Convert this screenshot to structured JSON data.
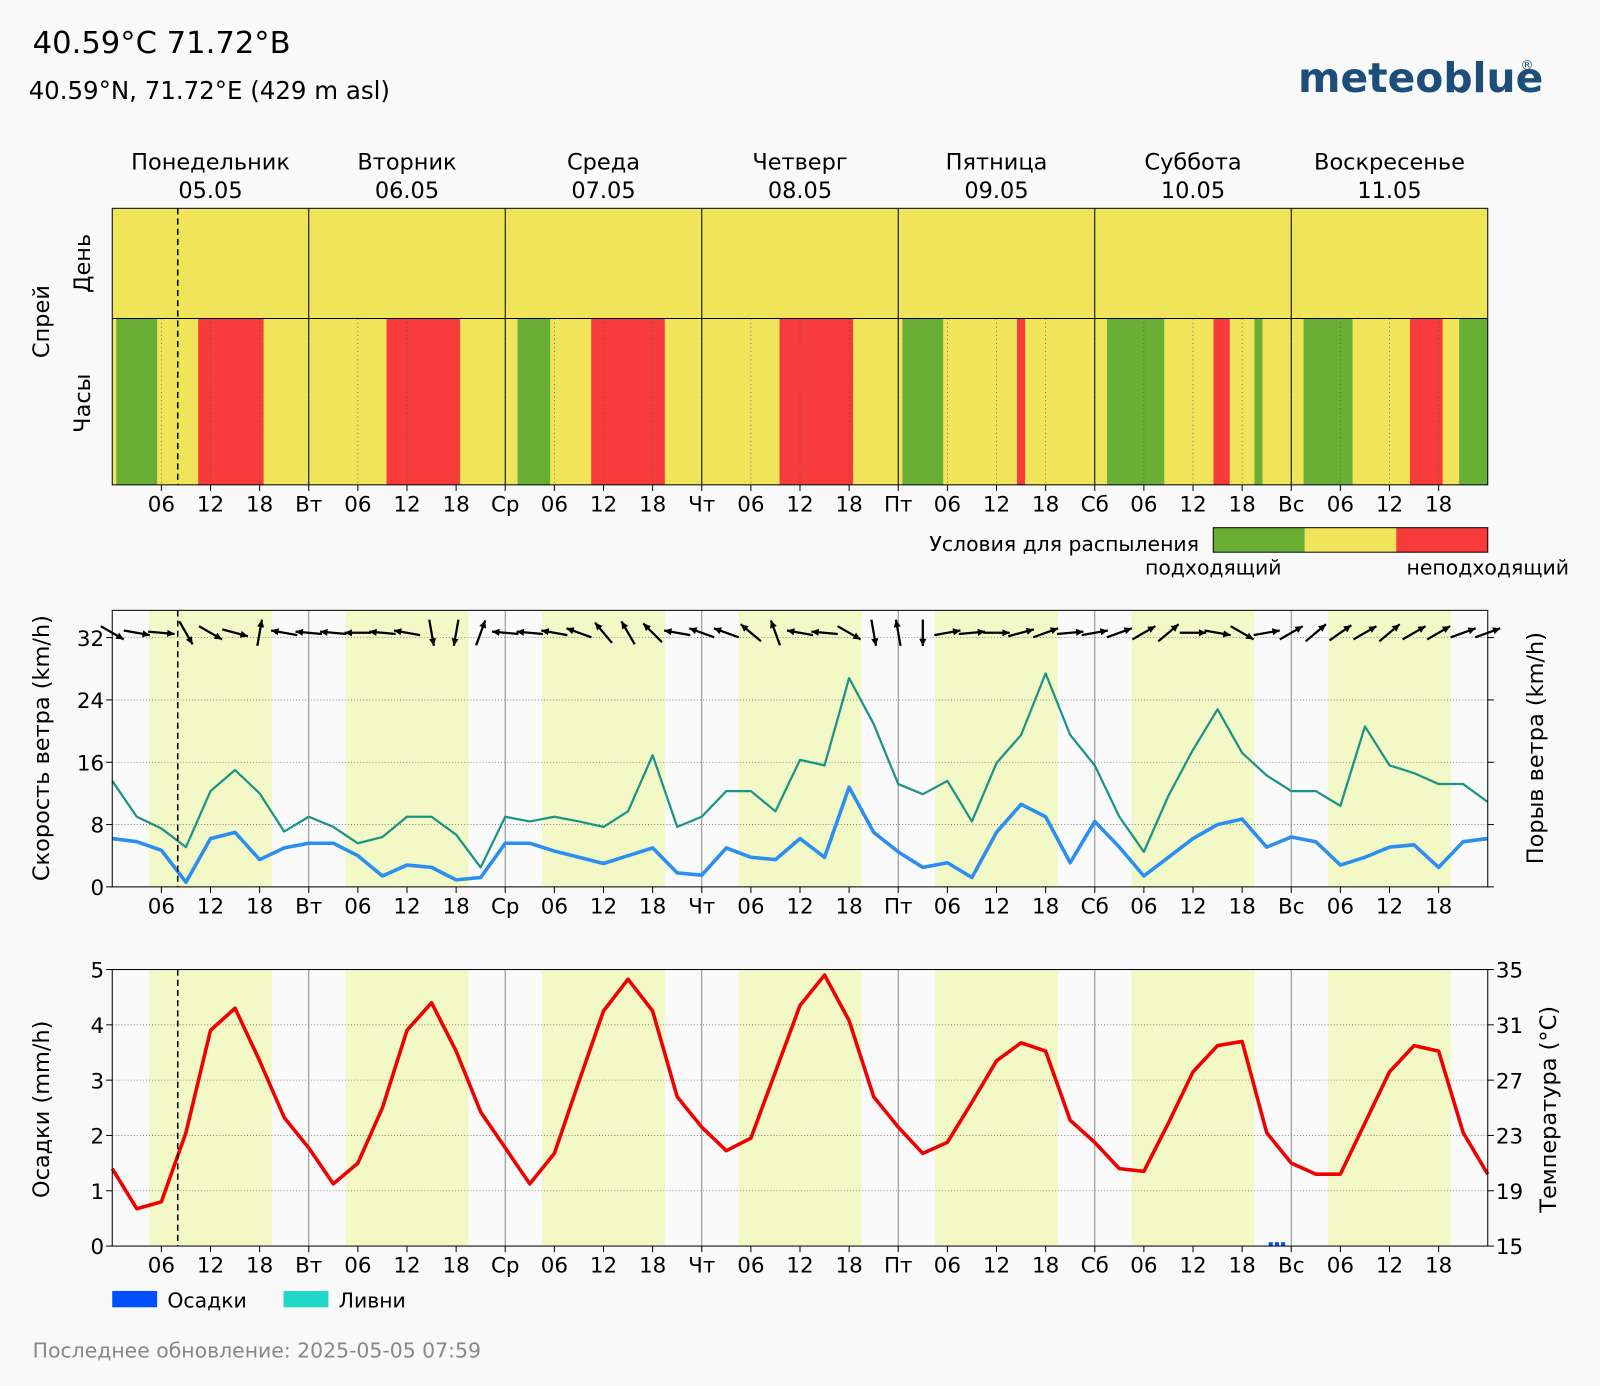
{
  "header": {
    "title": "40.59°C 71.72°B",
    "subtitle": "40.59°N, 71.72°E (429 m asl)",
    "logo": "meteoblue",
    "logo_mark": "®",
    "footer": "Последнее обновление: 2025-05-05 07:59"
  },
  "time_axis": {
    "xlim": [
      0,
      168
    ],
    "xticks": [
      {
        "value": 6,
        "label": "06"
      },
      12,
      18,
      {
        "value": 24,
        "label": "Вт"
      },
      {
        "value": 30,
        "label": "06"
      },
      {
        "value": 36,
        "label": "12"
      },
      {
        "value": 42,
        "label": "18"
      },
      {
        "value": 48,
        "label": "Ср"
      },
      {
        "value": 54,
        "label": "06"
      },
      {
        "value": 60,
        "label": "12"
      },
      {
        "value": 66,
        "label": "18"
      },
      {
        "value": 72,
        "label": "Чт"
      },
      {
        "value": 78,
        "label": "06"
      },
      {
        "value": 84,
        "label": "12"
      },
      {
        "value": 90,
        "label": "18"
      },
      {
        "value": 96,
        "label": "Пт"
      },
      {
        "value": 102,
        "label": "06"
      },
      {
        "value": 108,
        "label": "12"
      },
      {
        "value": 114,
        "label": "18"
      },
      {
        "value": 120,
        "label": "Сб"
      },
      {
        "value": 126,
        "label": "06"
      },
      {
        "value": 132,
        "label": "12"
      },
      {
        "value": 138,
        "label": "18"
      },
      {
        "value": 144,
        "label": "Вс"
      },
      {
        "value": 150,
        "label": "06"
      },
      {
        "value": 156,
        "label": "12"
      },
      {
        "value": 162,
        "label": "18"
      }
    ],
    "days": [
      {
        "name": "Понедельник",
        "date": "05.05",
        "color": "#000000"
      },
      {
        "name": "Вторник",
        "date": "06.05",
        "color": "#000000"
      },
      {
        "name": "Среда",
        "date": "07.05",
        "color": "#000000"
      },
      {
        "name": "Четверг",
        "date": "08.05",
        "color": "#000000"
      },
      {
        "name": "Пятница",
        "date": "09.05",
        "color": "#000000"
      },
      {
        "name": "Суббота",
        "date": "10.05",
        "color": "#d40000"
      },
      {
        "name": "Воскресенье",
        "date": "11.05",
        "color": "#d40000"
      }
    ],
    "now": 8,
    "daylight": [
      4.5,
      19.5
    ]
  },
  "chart_data": [
    {
      "type": "spray",
      "ylabel": "Спрей",
      "row_labels": [
        "День",
        "Часы"
      ],
      "day_row": [
        1,
        1,
        1,
        1,
        1,
        1,
        1
      ],
      "segments": [
        {
          "start": 0.5,
          "end": 5.5,
          "level": 0
        },
        {
          "start": 5.5,
          "end": 10.5,
          "level": 1
        },
        {
          "start": 10.5,
          "end": 18.5,
          "level": 2
        },
        {
          "start": 18.5,
          "end": 33.5,
          "level": 1
        },
        {
          "start": 33.5,
          "end": 42.5,
          "level": 2
        },
        {
          "start": 42.5,
          "end": 49.5,
          "level": 1
        },
        {
          "start": 49.5,
          "end": 53.5,
          "level": 0
        },
        {
          "start": 53.5,
          "end": 58.5,
          "level": 1
        },
        {
          "start": 58.5,
          "end": 67.5,
          "level": 2
        },
        {
          "start": 67.5,
          "end": 81.5,
          "level": 1
        },
        {
          "start": 81.5,
          "end": 90.5,
          "level": 2
        },
        {
          "start": 90.5,
          "end": 96.5,
          "level": 1
        },
        {
          "start": 96.5,
          "end": 101.5,
          "level": 0
        },
        {
          "start": 101.5,
          "end": 110.5,
          "level": 1
        },
        {
          "start": 110.5,
          "end": 111.5,
          "level": 2
        },
        {
          "start": 111.5,
          "end": 121.5,
          "level": 1
        },
        {
          "start": 121.5,
          "end": 128.5,
          "level": 0
        },
        {
          "start": 128.5,
          "end": 134.5,
          "level": 1
        },
        {
          "start": 134.5,
          "end": 136.5,
          "level": 2
        },
        {
          "start": 136.5,
          "end": 139.5,
          "level": 1
        },
        {
          "start": 139.5,
          "end": 140.5,
          "level": 0
        },
        {
          "start": 140.5,
          "end": 145.5,
          "level": 1
        },
        {
          "start": 145.5,
          "end": 151.5,
          "level": 0
        },
        {
          "start": 151.5,
          "end": 158.5,
          "level": 1
        },
        {
          "start": 158.5,
          "end": 162.5,
          "level": 2
        },
        {
          "start": 162.5,
          "end": 164.5,
          "level": 1
        },
        {
          "start": 164.5,
          "end": 168,
          "level": 0
        }
      ],
      "legend": {
        "title": "Условия для распыления",
        "colors": [
          "#6aaf35",
          "#f0e55a",
          "#f73b3a"
        ],
        "labels": [
          "подходящий",
          "неподходящий"
        ]
      }
    },
    {
      "type": "wind",
      "ylabel": "Скорость ветра (km/h)",
      "y2label": "Порыв ветра (km/h)",
      "ylim": [
        0,
        35.5
      ],
      "yticks": [
        0,
        8,
        16,
        24,
        32
      ],
      "grid": true,
      "x": [
        0,
        3,
        6,
        9,
        12,
        15,
        18,
        21,
        24,
        27,
        30,
        33,
        36,
        39,
        42,
        45,
        48,
        51,
        54,
        57,
        60,
        63,
        66,
        69,
        72,
        75,
        78,
        81,
        84,
        87,
        90,
        93,
        96,
        99,
        102,
        105,
        108,
        111,
        114,
        117,
        120,
        123,
        126,
        129,
        132,
        135,
        138,
        141,
        144,
        147,
        150,
        153,
        156,
        159,
        162,
        165,
        168
      ],
      "series": [
        {
          "color": "#2b8ef0",
          "values": [
            6.2,
            5.8,
            4.7,
            0.6,
            6.2,
            7,
            3.5,
            5,
            5.6,
            5.6,
            4,
            1.4,
            2.8,
            2.5,
            0.9,
            1.2,
            5.6,
            5.6,
            4.6,
            3.8,
            3,
            4,
            5,
            1.8,
            1.5,
            5,
            3.8,
            3.5,
            6.2,
            3.8,
            12.8,
            7,
            4.5,
            2.5,
            3.1,
            1.2,
            7,
            10.6,
            9,
            3.1,
            8.4,
            5.1,
            1.4,
            3.8,
            6.2,
            8,
            8.7,
            5.1,
            6.4,
            5.8,
            2.8,
            3.8,
            5.1,
            5.4,
            2.5,
            5.8,
            6.2
          ]
        },
        {
          "color": "#1c9387",
          "values": [
            13.6,
            9,
            7.5,
            5.1,
            12.3,
            15,
            12,
            7.1,
            9,
            7.7,
            5.6,
            6.4,
            9,
            9,
            6.7,
            2.5,
            9,
            8.4,
            9,
            8.4,
            7.7,
            9.7,
            16.9,
            7.7,
            9,
            12.3,
            12.3,
            9.7,
            16.3,
            15.6,
            26.8,
            20.9,
            13.2,
            11.9,
            13.6,
            8.4,
            15.9,
            19.5,
            27.4,
            19.5,
            15.6,
            9,
            4.5,
            11.7,
            17.6,
            22.8,
            17.2,
            14.3,
            12.3,
            12.3,
            10.4,
            20.6,
            15.6,
            14.6,
            13.2,
            13.2,
            10.9
          ]
        }
      ],
      "wind_direction": [
        300,
        280,
        275,
        330,
        300,
        285,
        190,
        100,
        95,
        95,
        90,
        95,
        100,
        350,
        10,
        200,
        95,
        95,
        100,
        110,
        140,
        150,
        135,
        100,
        110,
        110,
        130,
        160,
        100,
        95,
        300,
        350,
        170,
        0,
        260,
        265,
        270,
        255,
        250,
        265,
        260,
        250,
        240,
        230,
        270,
        280,
        300,
        260,
        240,
        230,
        235,
        240,
        230,
        240,
        240,
        250,
        250
      ]
    },
    {
      "type": "precip-temp",
      "ylabel": "Осадки (mm/h)",
      "y2label": "Температура (°C)",
      "ylim": [
        0,
        5
      ],
      "yticks": [
        0,
        1,
        2,
        3,
        4,
        5
      ],
      "y2lim": [
        15,
        35
      ],
      "y2ticks": [
        15,
        19,
        23,
        27,
        31,
        35
      ],
      "grid": true,
      "series": [
        {
          "name": "Осадки",
          "type": "bar",
          "color": "#0050ff",
          "x": [
            141.5,
            142.25,
            143
          ],
          "values": [
            0.07,
            0.07,
            0.07
          ]
        },
        {
          "name": "Ливни",
          "type": "bar",
          "color": "#1fd8c8",
          "x": [],
          "values": []
        },
        {
          "type": "line",
          "axis": "y2",
          "color": "#f00000",
          "x": [
            0,
            3,
            6,
            9,
            12,
            15,
            18,
            21,
            24,
            27,
            30,
            33,
            36,
            39,
            42,
            45,
            48,
            51,
            54,
            57,
            60,
            63,
            66,
            69,
            72,
            75,
            78,
            81,
            84,
            87,
            90,
            93,
            96,
            99,
            102,
            105,
            108,
            111,
            114,
            117,
            120,
            123,
            126,
            129,
            132,
            135,
            138,
            141,
            144,
            147,
            150,
            153,
            156,
            159,
            162,
            165,
            168
          ],
          "values": [
            20.6,
            17.7,
            18.2,
            23.2,
            30.6,
            32.2,
            28.4,
            24.3,
            22.1,
            19.5,
            21,
            25,
            30.6,
            32.6,
            29.1,
            24.7,
            22.1,
            19.5,
            21.7,
            26.9,
            32,
            34.3,
            32,
            25.8,
            23.6,
            21.9,
            22.8,
            27.6,
            32.4,
            34.6,
            31.3,
            25.8,
            23.6,
            21.7,
            22.5,
            25.4,
            28.4,
            29.7,
            29.1,
            24.1,
            22.5,
            20.6,
            20.4,
            23.9,
            27.6,
            29.5,
            29.8,
            23.2,
            21,
            20.2,
            20.2,
            23.9,
            27.6,
            29.5,
            29.1,
            23.2,
            20.2
          ]
        }
      ]
    }
  ]
}
